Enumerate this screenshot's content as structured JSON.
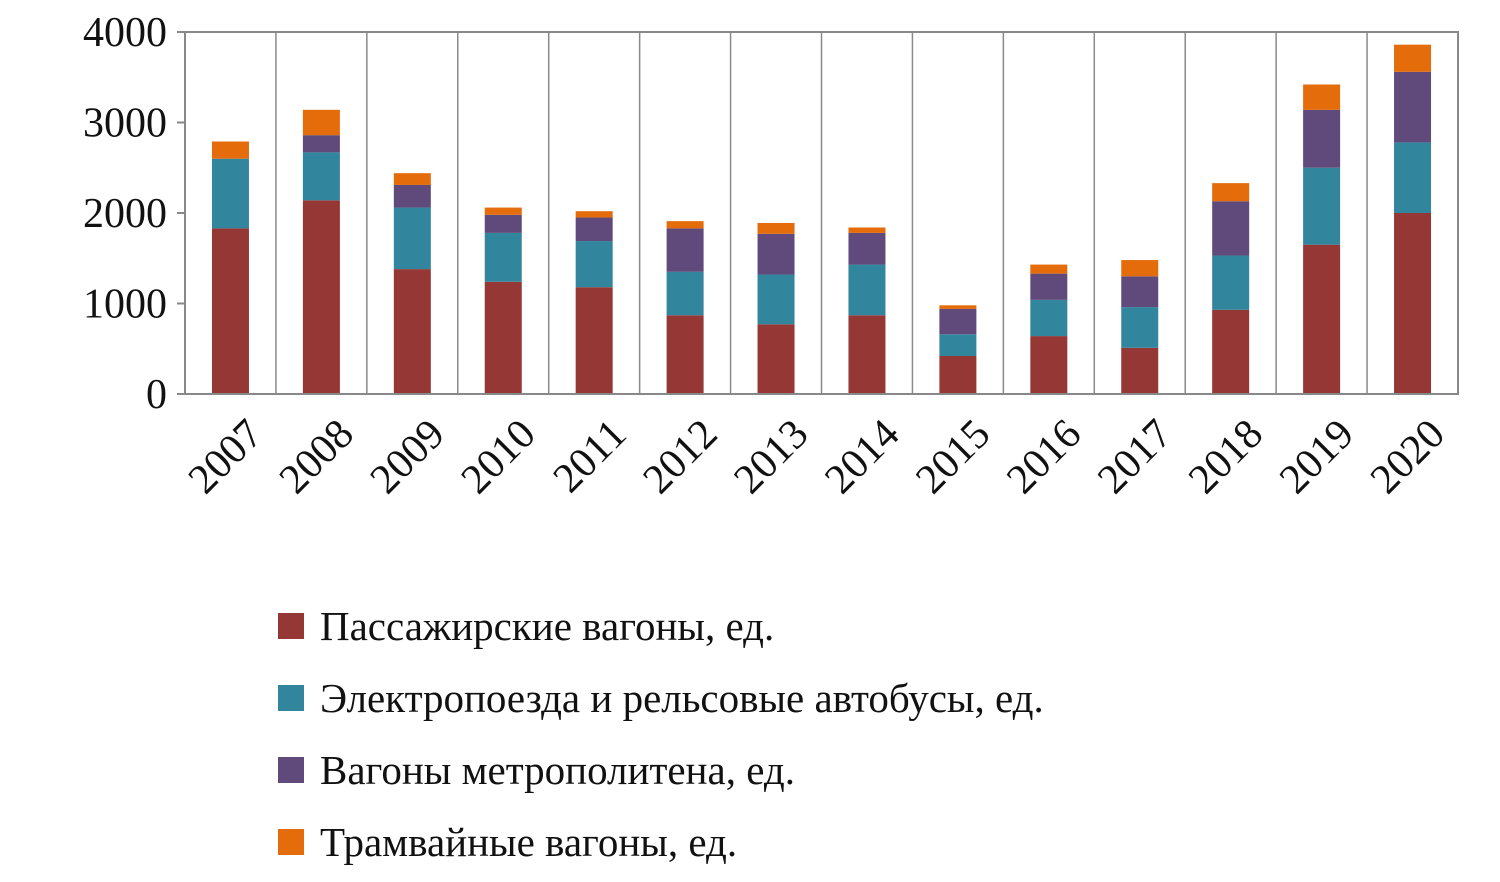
{
  "chart_data": {
    "type": "bar",
    "stacked": true,
    "categories": [
      "2007",
      "2008",
      "2009",
      "2010",
      "2011",
      "2012",
      "2013",
      "2014",
      "2015",
      "2016",
      "2017",
      "2018",
      "2019",
      "2020"
    ],
    "series": [
      {
        "name": "Пассажирские вагоны, ед.",
        "color": "#953735",
        "values": [
          1830,
          2140,
          1380,
          1240,
          1180,
          870,
          770,
          870,
          420,
          640,
          510,
          930,
          1650,
          2000
        ]
      },
      {
        "name": "Электропоезда и рельсовые автобусы, ед.",
        "color": "#31859c",
        "values": [
          770,
          530,
          680,
          540,
          510,
          480,
          550,
          560,
          240,
          400,
          450,
          600,
          850,
          780
        ]
      },
      {
        "name": "Вагоны метрополитена, ед.",
        "color": "#604a7b",
        "values": [
          0,
          190,
          250,
          200,
          260,
          480,
          450,
          350,
          280,
          290,
          340,
          600,
          640,
          780
        ]
      },
      {
        "name": "Трамвайные вагоны, ед.",
        "color": "#e46c0a",
        "values": [
          190,
          280,
          130,
          80,
          70,
          80,
          120,
          60,
          40,
          100,
          180,
          200,
          280,
          300
        ]
      }
    ],
    "yticks": [
      "0",
      "1000",
      "2000",
      "3000",
      "4000"
    ],
    "ylim": [
      0,
      4000
    ],
    "grid": "vertical",
    "legend": "bottom"
  }
}
